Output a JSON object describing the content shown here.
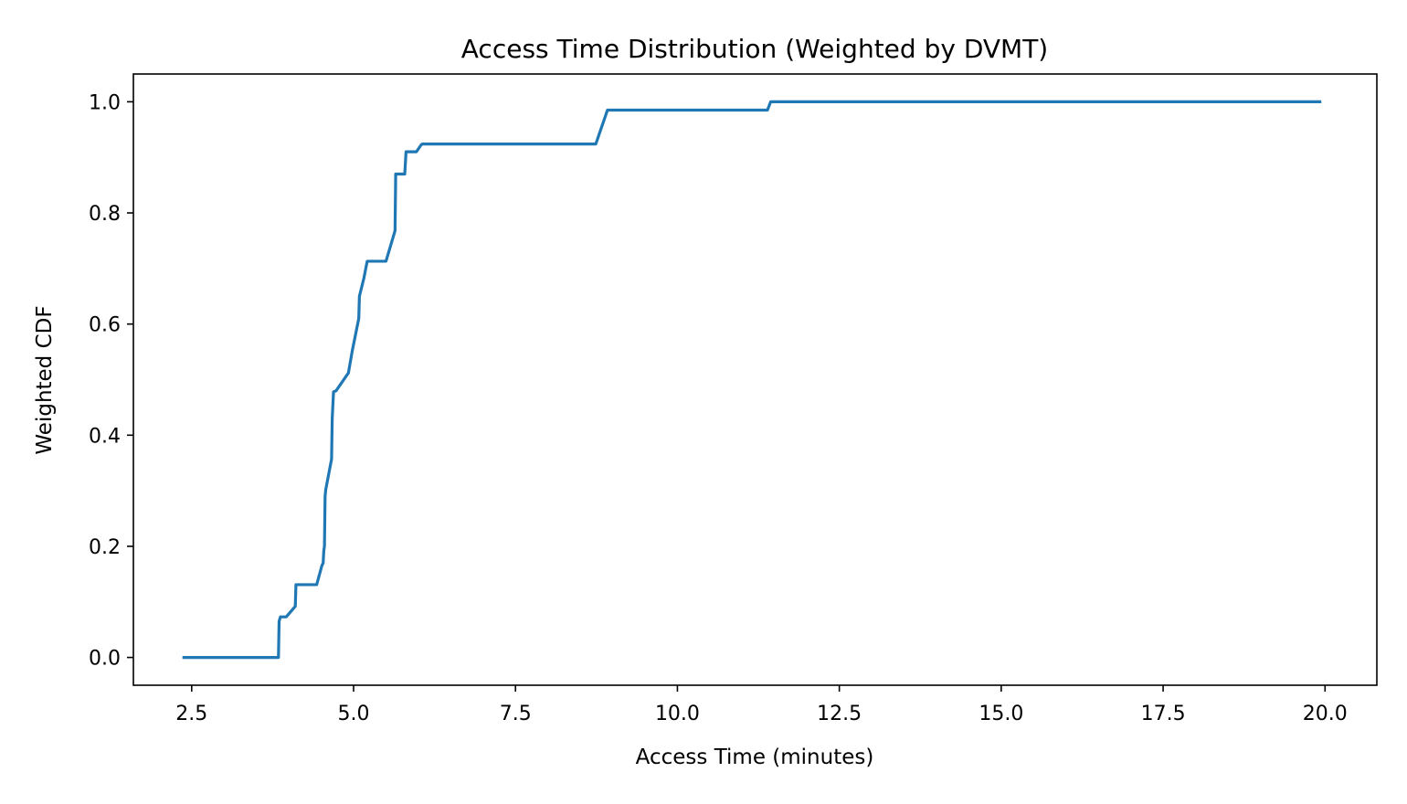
{
  "chart_data": {
    "type": "line",
    "title": "Access Time Distribution (Weighted by DVMT)",
    "xlabel": "Access Time (minutes)",
    "ylabel": "Weighted CDF",
    "xlim": [
      1.6,
      20.8
    ],
    "ylim": [
      -0.05,
      1.05
    ],
    "x_ticks": [
      2.5,
      5.0,
      7.5,
      10.0,
      12.5,
      15.0,
      17.5,
      20.0
    ],
    "x_tick_labels": [
      "2.5",
      "5.0",
      "7.5",
      "10.0",
      "12.5",
      "15.0",
      "17.5",
      "20.0"
    ],
    "y_ticks": [
      0.0,
      0.2,
      0.4,
      0.6,
      0.8,
      1.0
    ],
    "y_tick_labels": [
      "0.0",
      "0.2",
      "0.4",
      "0.6",
      "0.8",
      "1.0"
    ],
    "grid": false,
    "series": [
      {
        "color": "#1f77b4",
        "x": [
          2.38,
          3.84,
          3.85,
          3.87,
          3.96,
          4.1,
          4.11,
          4.43,
          4.51,
          4.53,
          4.54,
          4.55,
          4.56,
          4.57,
          4.66,
          4.67,
          4.69,
          4.73,
          4.92,
          4.98,
          5.08,
          5.09,
          5.16,
          5.21,
          5.5,
          5.64,
          5.65,
          5.67,
          5.79,
          5.81,
          5.97,
          6.04,
          6.06,
          8.74,
          8.92,
          11.39,
          11.44,
          19.92
        ],
        "y": [
          0.0,
          0.0,
          0.065,
          0.073,
          0.073,
          0.092,
          0.131,
          0.131,
          0.165,
          0.17,
          0.192,
          0.2,
          0.29,
          0.302,
          0.357,
          0.43,
          0.478,
          0.48,
          0.512,
          0.552,
          0.61,
          0.65,
          0.683,
          0.713,
          0.713,
          0.768,
          0.87,
          0.87,
          0.87,
          0.91,
          0.91,
          0.922,
          0.924,
          0.924,
          0.985,
          0.985,
          1.0,
          1.0
        ]
      }
    ]
  }
}
